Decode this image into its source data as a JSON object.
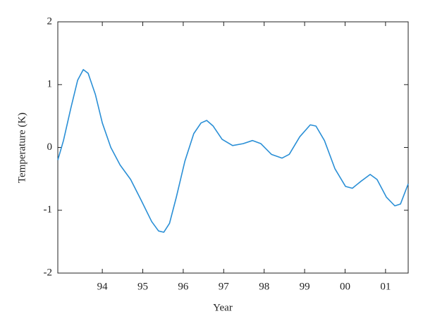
{
  "chart_data": {
    "type": "line",
    "xlabel": "Year",
    "ylabel": "Temperature (K)",
    "x": [
      1992.9,
      1993.04,
      1993.22,
      1993.39,
      1993.53,
      1993.65,
      1993.83,
      1994.0,
      1994.21,
      1994.44,
      1994.7,
      1994.96,
      1995.22,
      1995.39,
      1995.52,
      1995.66,
      1995.83,
      1996.04,
      1996.26,
      1996.44,
      1996.58,
      1996.74,
      1996.96,
      1997.22,
      1997.48,
      1997.71,
      1997.92,
      1998.18,
      1998.44,
      1998.62,
      1998.88,
      1999.14,
      1999.28,
      1999.49,
      1999.75,
      2000.01,
      2000.18,
      2000.39,
      2000.62,
      2000.79,
      2001.02,
      2001.23,
      2001.37,
      2001.56
    ],
    "series": [
      {
        "color": "#2a8fd6",
        "values": [
          -0.2,
          0.11,
          0.62,
          1.07,
          1.24,
          1.18,
          0.84,
          0.39,
          0,
          -0.28,
          -0.51,
          -0.84,
          -1.18,
          -1.33,
          -1.35,
          -1.21,
          -0.79,
          -0.22,
          0.22,
          0.39,
          0.43,
          0.34,
          0.13,
          0.03,
          0.06,
          0.11,
          0.06,
          -0.11,
          -0.17,
          -0.11,
          0.17,
          0.36,
          0.34,
          0.11,
          -0.34,
          -0.62,
          -0.65,
          -0.54,
          -0.43,
          -0.51,
          -0.79,
          -0.93,
          -0.9,
          -0.58
        ]
      }
    ],
    "xlim": [
      1992.9,
      2001.56
    ],
    "xticks": [
      {
        "value": 1994,
        "label": "94"
      },
      {
        "value": 1995,
        "label": "95"
      },
      {
        "value": 1996,
        "label": "96"
      },
      {
        "value": 1997,
        "label": "97"
      },
      {
        "value": 1998,
        "label": "98"
      },
      {
        "value": 1999,
        "label": "99"
      },
      {
        "value": 2000,
        "label": "00"
      },
      {
        "value": 2001,
        "label": "01"
      }
    ],
    "ylim": [
      -2,
      2
    ],
    "yticks": [
      -2,
      -1,
      0,
      1,
      2
    ],
    "grid": false
  }
}
